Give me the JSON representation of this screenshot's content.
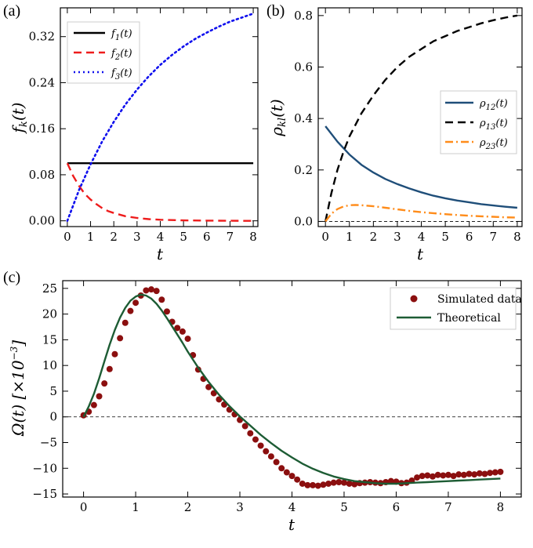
{
  "chart_data": [
    {
      "panel": "(a)",
      "type": "line",
      "xlabel": "t",
      "ylabel": "f_k(t)",
      "xlim": [
        -0.3,
        8.2
      ],
      "ylim": [
        -0.01,
        0.37
      ],
      "xticks": [
        0,
        1,
        2,
        3,
        4,
        5,
        6,
        7,
        8
      ],
      "yticks": [
        0.0,
        0.08,
        0.16,
        0.24,
        0.32
      ],
      "ytick_labels": [
        "0.00",
        "0.08",
        "0.16",
        "0.24",
        "0.32"
      ],
      "legend_position": "top-left",
      "series": [
        {
          "name": "f1(t)",
          "label_main": "f",
          "label_sub": "1",
          "label_tail": "(t)",
          "color": "#000000",
          "style": "solid",
          "x": [
            0,
            1,
            2,
            3,
            4,
            5,
            6,
            7,
            8
          ],
          "y": [
            0.1,
            0.1,
            0.1,
            0.1,
            0.1,
            0.1,
            0.1,
            0.1,
            0.1
          ]
        },
        {
          "name": "f2(t)",
          "label_main": "f",
          "label_sub": "2",
          "label_tail": "(t)",
          "color": "#ee1c1c",
          "style": "dashed",
          "x": [
            0,
            0.25,
            0.5,
            0.75,
            1,
            1.25,
            1.5,
            1.75,
            2,
            2.5,
            3,
            3.5,
            4,
            5,
            6,
            7,
            8
          ],
          "y": [
            0.1,
            0.078,
            0.061,
            0.047,
            0.037,
            0.029,
            0.022,
            0.017,
            0.0135,
            0.008,
            0.005,
            0.003,
            0.0018,
            0.0007,
            0.0003,
            0.0001,
            0.0
          ]
        },
        {
          "name": "f3(t)",
          "label_main": "f",
          "label_sub": "3",
          "label_tail": "(t)",
          "color": "#1010ee",
          "style": "dotted",
          "x": [
            0,
            0.5,
            1,
            1.5,
            2,
            2.5,
            3,
            3.5,
            4,
            4.5,
            5,
            5.5,
            6,
            6.5,
            7,
            7.5,
            8
          ],
          "y": [
            0.0,
            0.053,
            0.098,
            0.138,
            0.172,
            0.202,
            0.228,
            0.251,
            0.271,
            0.288,
            0.303,
            0.316,
            0.327,
            0.337,
            0.346,
            0.353,
            0.36
          ]
        }
      ]
    },
    {
      "panel": "(b)",
      "type": "line",
      "xlabel": "t",
      "ylabel": "ρ_kl(t)",
      "xlim": [
        -0.3,
        8.2
      ],
      "ylim": [
        -0.02,
        0.83
      ],
      "xticks": [
        0,
        1,
        2,
        3,
        4,
        5,
        6,
        7,
        8
      ],
      "yticks": [
        0.0,
        0.2,
        0.4,
        0.6,
        0.8
      ],
      "ytick_labels": [
        "0.0",
        "0.2",
        "0.4",
        "0.6",
        "0.8"
      ],
      "legend_position": "center-right",
      "reference_line_y": 0,
      "series": [
        {
          "name": "ρ12(t)",
          "label_main": "ρ",
          "label_sub": "12",
          "label_tail": "(t)",
          "color": "#1f4e79",
          "style": "solid",
          "x": [
            0,
            0.5,
            1,
            1.5,
            2,
            2.5,
            3,
            3.5,
            4,
            4.5,
            5,
            5.5,
            6,
            6.5,
            7,
            7.5,
            8
          ],
          "y": [
            0.37,
            0.31,
            0.26,
            0.22,
            0.19,
            0.165,
            0.145,
            0.128,
            0.113,
            0.1,
            0.09,
            0.081,
            0.074,
            0.067,
            0.062,
            0.057,
            0.053
          ]
        },
        {
          "name": "ρ13(t)",
          "label_main": "ρ",
          "label_sub": "13",
          "label_tail": "(t)",
          "color": "#000000",
          "style": "dashed",
          "x": [
            0,
            0.25,
            0.5,
            0.75,
            1,
            1.5,
            2,
            2.5,
            3,
            3.5,
            4,
            4.5,
            5,
            5.5,
            6,
            6.5,
            7,
            7.5,
            8
          ],
          "y": [
            0.0,
            0.11,
            0.2,
            0.27,
            0.33,
            0.42,
            0.49,
            0.55,
            0.6,
            0.64,
            0.67,
            0.7,
            0.72,
            0.74,
            0.755,
            0.77,
            0.782,
            0.792,
            0.8
          ]
        },
        {
          "name": "ρ23(t)",
          "label_main": "ρ",
          "label_sub": "23",
          "label_tail": "(t)",
          "color": "#ff8c1a",
          "style": "dashdot",
          "x": [
            0,
            0.25,
            0.5,
            0.75,
            1,
            1.25,
            1.5,
            2,
            2.5,
            3,
            3.5,
            4,
            4.5,
            5,
            5.5,
            6,
            6.5,
            7,
            7.5,
            8
          ],
          "y": [
            0.0,
            0.03,
            0.048,
            0.058,
            0.063,
            0.064,
            0.063,
            0.059,
            0.053,
            0.047,
            0.041,
            0.036,
            0.032,
            0.028,
            0.025,
            0.022,
            0.02,
            0.018,
            0.016,
            0.015
          ]
        }
      ]
    },
    {
      "panel": "(c)",
      "type": "line+scatter",
      "xlabel": "t",
      "ylabel": "Ω(t) [×10^-3]",
      "xlim": [
        -0.4,
        8.4
      ],
      "ylim": [
        -15.6,
        26.5
      ],
      "xticks": [
        0,
        1,
        2,
        3,
        4,
        5,
        6,
        7,
        8
      ],
      "yticks": [
        -15,
        -10,
        -5,
        0,
        5,
        10,
        15,
        20,
        25
      ],
      "ytick_labels": [
        "−15",
        "−10",
        "−5",
        "0",
        "5",
        "10",
        "15",
        "20",
        "25"
      ],
      "legend_position": "top-right",
      "reference_line_y": 0,
      "series": [
        {
          "name": "Simulated data",
          "kind": "scatter",
          "color": "#8b0f0f",
          "x": [
            0.0,
            0.1,
            0.2,
            0.3,
            0.4,
            0.5,
            0.6,
            0.7,
            0.8,
            0.9,
            1.0,
            1.1,
            1.2,
            1.3,
            1.4,
            1.5,
            1.6,
            1.7,
            1.8,
            1.9,
            2.0,
            2.1,
            2.2,
            2.3,
            2.4,
            2.5,
            2.6,
            2.7,
            2.8,
            2.9,
            3.0,
            3.1,
            3.2,
            3.3,
            3.4,
            3.5,
            3.6,
            3.7,
            3.8,
            3.9,
            4.0,
            4.1,
            4.2,
            4.3,
            4.4,
            4.5,
            4.6,
            4.7,
            4.8,
            4.9,
            5.0,
            5.1,
            5.2,
            5.3,
            5.4,
            5.5,
            5.6,
            5.7,
            5.8,
            5.9,
            6.0,
            6.1,
            6.2,
            6.3,
            6.4,
            6.5,
            6.6,
            6.7,
            6.8,
            6.9,
            7.0,
            7.1,
            7.2,
            7.3,
            7.4,
            7.5,
            7.6,
            7.7,
            7.8,
            7.9,
            8.0
          ],
          "y": [
            0.3,
            1.0,
            2.3,
            4.0,
            6.5,
            9.3,
            12.2,
            15.3,
            18.3,
            20.6,
            22.2,
            23.6,
            24.6,
            24.8,
            24.5,
            22.8,
            20.5,
            18.5,
            17.3,
            16.6,
            15.2,
            12.0,
            9.2,
            7.4,
            5.8,
            4.6,
            3.4,
            2.4,
            1.4,
            0.5,
            -0.6,
            -1.8,
            -3.2,
            -4.4,
            -5.6,
            -6.7,
            -7.7,
            -8.8,
            -10.0,
            -10.8,
            -11.5,
            -12.2,
            -13.0,
            -13.3,
            -13.3,
            -13.4,
            -13.2,
            -13.0,
            -12.8,
            -12.7,
            -12.8,
            -13.0,
            -13.1,
            -12.9,
            -12.8,
            -12.7,
            -12.8,
            -12.9,
            -12.7,
            -12.5,
            -12.6,
            -12.9,
            -12.8,
            -12.4,
            -11.8,
            -11.5,
            -11.4,
            -11.6,
            -11.3,
            -11.4,
            -11.3,
            -11.5,
            -11.2,
            -11.3,
            -11.1,
            -11.2,
            -11.0,
            -11.1,
            -10.9,
            -10.8,
            -10.7
          ]
        },
        {
          "name": "Theoretical",
          "kind": "line",
          "color": "#1d5c34",
          "x": [
            0.0,
            0.1,
            0.2,
            0.3,
            0.4,
            0.5,
            0.6,
            0.7,
            0.8,
            0.9,
            1.0,
            1.1,
            1.2,
            1.3,
            1.4,
            1.5,
            1.6,
            1.7,
            1.8,
            1.9,
            2.0,
            2.2,
            2.4,
            2.6,
            2.8,
            3.0,
            3.2,
            3.4,
            3.6,
            3.8,
            4.0,
            4.2,
            4.4,
            4.6,
            4.8,
            5.0,
            5.2,
            5.4,
            5.6,
            5.8,
            6.0,
            6.2,
            6.4,
            6.6,
            6.8,
            7.0,
            7.2,
            7.4,
            7.6,
            7.8,
            8.0
          ],
          "y": [
            0.0,
            2.0,
            4.5,
            7.5,
            10.8,
            14.0,
            16.9,
            19.3,
            21.2,
            22.6,
            23.4,
            23.8,
            23.6,
            23.0,
            22.0,
            20.7,
            19.2,
            17.6,
            16.0,
            14.4,
            12.7,
            9.6,
            6.8,
            4.3,
            2.1,
            0.1,
            -1.7,
            -3.5,
            -5.1,
            -6.6,
            -7.9,
            -9.1,
            -10.1,
            -10.9,
            -11.6,
            -12.1,
            -12.5,
            -12.7,
            -12.9,
            -13.0,
            -13.0,
            -12.9,
            -12.8,
            -12.7,
            -12.6,
            -12.5,
            -12.4,
            -12.3,
            -12.2,
            -12.1,
            -12.0
          ]
        }
      ]
    }
  ]
}
